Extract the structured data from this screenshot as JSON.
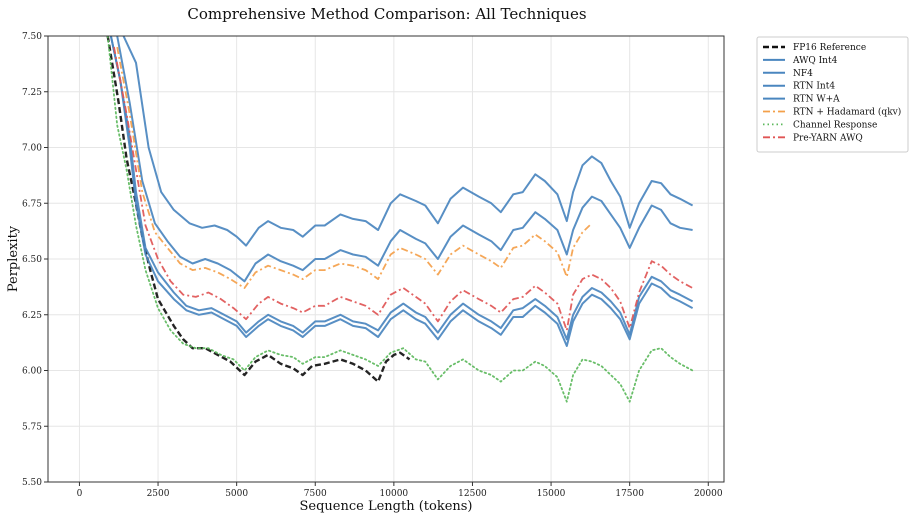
{
  "chart_data": {
    "type": "line",
    "title": "Comprehensive Method Comparison: All Techniques",
    "xlabel": "Sequence Length (tokens)",
    "ylabel": "Perplexity",
    "xlim": [
      -1000,
      20500
    ],
    "ylim": [
      5.5,
      7.5
    ],
    "x_ticks": [
      0,
      2500,
      5000,
      7500,
      10000,
      12500,
      15000,
      17500,
      20000
    ],
    "y_ticks": [
      5.5,
      5.75,
      6.0,
      6.25,
      6.5,
      6.75,
      7.0,
      7.25,
      7.5
    ],
    "x_tick_labels": [
      "0",
      "2500",
      "5000",
      "7500",
      "10000",
      "12500",
      "15000",
      "17500",
      "20000"
    ],
    "y_tick_labels": [
      "5.50",
      "5.75",
      "6.00",
      "6.25",
      "6.50",
      "6.75",
      "7.00",
      "7.25",
      "7.50"
    ],
    "grid": true,
    "legend_position": "outside-top-right",
    "series": [
      {
        "name": "FP16 Reference",
        "color": "#111111",
        "style": "dashed",
        "x": [
          900,
          1250,
          1500,
          1750,
          2000,
          2250,
          2500,
          3000,
          3300,
          3600,
          4000,
          4400,
          4800,
          5250,
          5600,
          6000,
          6400,
          6800,
          7100,
          7400,
          7800,
          8300,
          8700,
          9100,
          9500,
          9750,
          10000,
          10200,
          10500
        ],
        "y": [
          7.5,
          7.2,
          6.95,
          6.78,
          6.6,
          6.45,
          6.32,
          6.2,
          6.14,
          6.1,
          6.1,
          6.07,
          6.04,
          5.98,
          6.04,
          6.07,
          6.03,
          6.01,
          5.98,
          6.02,
          6.03,
          6.05,
          6.03,
          6.0,
          5.95,
          6.04,
          6.07,
          6.08,
          6.05
        ]
      },
      {
        "name": "AWQ Int4",
        "color": "#4a86bf",
        "style": "solid",
        "x": [
          1000,
          1300,
          1600,
          1800,
          2100,
          2500,
          3000,
          3400,
          3800,
          4200,
          4600,
          5000,
          5300,
          5700,
          6000,
          6400,
          6800,
          7100,
          7500,
          7800,
          8300,
          8700,
          9100,
          9500,
          9900,
          10300,
          10700,
          11000,
          11400,
          11800,
          12200,
          12700,
          13100,
          13400,
          13800,
          14100,
          14500,
          14800,
          15200,
          15500,
          15700,
          16000,
          16300,
          16600,
          16900,
          17200,
          17500,
          17800,
          18200,
          18500,
          18800,
          19100,
          19500
        ],
        "y": [
          7.5,
          7.3,
          7.0,
          6.75,
          6.52,
          6.4,
          6.32,
          6.27,
          6.25,
          6.26,
          6.23,
          6.2,
          6.15,
          6.2,
          6.23,
          6.2,
          6.18,
          6.15,
          6.2,
          6.2,
          6.23,
          6.2,
          6.19,
          6.15,
          6.23,
          6.27,
          6.23,
          6.21,
          6.14,
          6.22,
          6.27,
          6.22,
          6.19,
          6.16,
          6.24,
          6.24,
          6.29,
          6.26,
          6.21,
          6.11,
          6.22,
          6.3,
          6.34,
          6.32,
          6.28,
          6.23,
          6.14,
          6.3,
          6.39,
          6.37,
          6.33,
          6.31,
          6.28
        ]
      },
      {
        "name": "NF4",
        "color": "#4a86bf",
        "style": "solid",
        "x": [
          1000,
          1300,
          1600,
          1800,
          2100,
          2500,
          3000,
          3400,
          3800,
          4200,
          4600,
          5000,
          5300,
          5700,
          6000,
          6400,
          6800,
          7100,
          7500,
          7800,
          8300,
          8700,
          9100,
          9500,
          9900,
          10300,
          10700,
          11000,
          11400,
          11800,
          12200,
          12700,
          13100,
          13400,
          13800,
          14100,
          14500,
          14800,
          15200,
          15500,
          15700,
          16000,
          16300,
          16600,
          16900,
          17200,
          17500,
          17800,
          18200,
          18500,
          18800,
          19100,
          19500
        ],
        "y": [
          7.5,
          7.3,
          7.05,
          6.8,
          6.55,
          6.44,
          6.35,
          6.29,
          6.27,
          6.28,
          6.25,
          6.22,
          6.17,
          6.22,
          6.25,
          6.22,
          6.2,
          6.17,
          6.22,
          6.22,
          6.25,
          6.22,
          6.21,
          6.18,
          6.26,
          6.3,
          6.26,
          6.24,
          6.17,
          6.25,
          6.3,
          6.25,
          6.22,
          6.19,
          6.27,
          6.28,
          6.32,
          6.29,
          6.24,
          6.14,
          6.25,
          6.33,
          6.37,
          6.35,
          6.31,
          6.26,
          6.16,
          6.33,
          6.42,
          6.4,
          6.36,
          6.34,
          6.31
        ]
      },
      {
        "name": "RTN Int4",
        "color": "#4a86bf",
        "style": "solid",
        "x": [
          1400,
          1800,
          2200,
          2600,
          3000,
          3500,
          3900,
          4300,
          4700,
          5000,
          5300,
          5700,
          6000,
          6400,
          6800,
          7100,
          7500,
          7800,
          8300,
          8700,
          9100,
          9500,
          9900,
          10200,
          10700,
          11000,
          11400,
          11800,
          12200,
          12700,
          13100,
          13400,
          13800,
          14100,
          14500,
          14800,
          15200,
          15500,
          15700,
          16000,
          16300,
          16600,
          16900,
          17200,
          17500,
          17800,
          18200,
          18500,
          18800,
          19100,
          19500
        ],
        "y": [
          7.5,
          7.38,
          7.0,
          6.8,
          6.72,
          6.66,
          6.64,
          6.65,
          6.63,
          6.6,
          6.56,
          6.64,
          6.67,
          6.64,
          6.63,
          6.6,
          6.65,
          6.65,
          6.7,
          6.68,
          6.67,
          6.63,
          6.75,
          6.79,
          6.76,
          6.74,
          6.66,
          6.77,
          6.82,
          6.78,
          6.75,
          6.71,
          6.79,
          6.8,
          6.88,
          6.85,
          6.79,
          6.67,
          6.8,
          6.92,
          6.96,
          6.93,
          6.85,
          6.78,
          6.64,
          6.75,
          6.85,
          6.84,
          6.79,
          6.77,
          6.74
        ]
      },
      {
        "name": "RTN W+A",
        "color": "#4a86bf",
        "style": "solid",
        "x": [
          1200,
          1600,
          2000,
          2400,
          2800,
          3200,
          3600,
          4000,
          4400,
          4800,
          5250,
          5600,
          6000,
          6400,
          6800,
          7100,
          7500,
          7800,
          8300,
          8700,
          9100,
          9500,
          9900,
          10200,
          10700,
          11000,
          11400,
          11800,
          12200,
          12700,
          13100,
          13400,
          13800,
          14100,
          14500,
          14800,
          15200,
          15500,
          15700,
          16000,
          16300,
          16600,
          16900,
          17200,
          17500,
          17800,
          18200,
          18500,
          18800,
          19100,
          19500
        ],
        "y": [
          7.5,
          7.2,
          6.85,
          6.66,
          6.58,
          6.51,
          6.48,
          6.5,
          6.48,
          6.45,
          6.4,
          6.48,
          6.52,
          6.49,
          6.47,
          6.45,
          6.5,
          6.5,
          6.54,
          6.52,
          6.51,
          6.47,
          6.58,
          6.63,
          6.59,
          6.57,
          6.5,
          6.6,
          6.65,
          6.61,
          6.58,
          6.54,
          6.63,
          6.64,
          6.71,
          6.68,
          6.63,
          6.52,
          6.63,
          6.73,
          6.78,
          6.76,
          6.7,
          6.64,
          6.55,
          6.64,
          6.74,
          6.72,
          6.66,
          6.64,
          6.63
        ]
      },
      {
        "name": "RTN + Hadamard (qkv)",
        "color": "#f4a04a",
        "style": "dashdot",
        "x": [
          1200,
          1600,
          2000,
          2400,
          2800,
          3200,
          3600,
          4000,
          4400,
          4800,
          5250,
          5600,
          6000,
          6400,
          6800,
          7100,
          7500,
          7800,
          8300,
          8700,
          9100,
          9500,
          9900,
          10200,
          10700,
          11000,
          11400,
          11800,
          12200,
          12700,
          13100,
          13400,
          13800,
          14100,
          14500,
          14800,
          15200,
          15500,
          15700,
          16000,
          16300
        ],
        "y": [
          7.45,
          7.15,
          6.8,
          6.62,
          6.55,
          6.48,
          6.45,
          6.46,
          6.44,
          6.41,
          6.37,
          6.44,
          6.47,
          6.45,
          6.43,
          6.41,
          6.45,
          6.45,
          6.48,
          6.47,
          6.45,
          6.41,
          6.52,
          6.55,
          6.52,
          6.5,
          6.43,
          6.52,
          6.56,
          6.52,
          6.49,
          6.46,
          6.55,
          6.56,
          6.61,
          6.58,
          6.53,
          6.42,
          6.55,
          6.62,
          6.66
        ]
      },
      {
        "name": "Channel Response",
        "color": "#5cb85c",
        "style": "dotted",
        "x": [
          900,
          1200,
          1500,
          1800,
          2100,
          2500,
          2900,
          3300,
          3700,
          4100,
          4500,
          4900,
          5250,
          5600,
          6000,
          6400,
          6800,
          7100,
          7500,
          7800,
          8300,
          8700,
          9100,
          9500,
          9900,
          10300,
          10700,
          11000,
          11400,
          11800,
          12200,
          12700,
          13100,
          13400,
          13800,
          14100,
          14500,
          14800,
          15200,
          15500,
          15700,
          16000,
          16300,
          16600,
          16900,
          17200,
          17500,
          17800,
          18200,
          18500,
          18800,
          19100,
          19500
        ],
        "y": [
          7.5,
          7.1,
          6.9,
          6.65,
          6.45,
          6.28,
          6.18,
          6.12,
          6.1,
          6.1,
          6.07,
          6.05,
          6.0,
          6.06,
          6.09,
          6.07,
          6.06,
          6.03,
          6.06,
          6.06,
          6.09,
          6.07,
          6.05,
          6.02,
          6.08,
          6.1,
          6.05,
          6.04,
          5.96,
          6.02,
          6.05,
          6.0,
          5.98,
          5.95,
          6.0,
          6.0,
          6.04,
          6.02,
          5.97,
          5.86,
          5.98,
          6.05,
          6.04,
          6.02,
          5.98,
          5.94,
          5.86,
          6.0,
          6.09,
          6.1,
          6.06,
          6.03,
          6.0
        ]
      },
      {
        "name": "Pre-YARN AWQ",
        "color": "#e05555",
        "style": "dashdot",
        "x": [
          1100,
          1500,
          1800,
          2100,
          2500,
          2900,
          3300,
          3700,
          4100,
          4500,
          4900,
          5300,
          5700,
          6000,
          6400,
          6800,
          7100,
          7500,
          7800,
          8300,
          8700,
          9100,
          9500,
          9900,
          10300,
          10700,
          11000,
          11400,
          11800,
          12200,
          12700,
          13100,
          13400,
          13800,
          14100,
          14500,
          14800,
          15200,
          15500,
          15700,
          16000,
          16300,
          16600,
          16900,
          17200,
          17500,
          17800,
          18200,
          18500,
          18800,
          19100,
          19500
        ],
        "y": [
          7.45,
          7.15,
          6.9,
          6.65,
          6.5,
          6.4,
          6.34,
          6.33,
          6.35,
          6.32,
          6.28,
          6.23,
          6.3,
          6.33,
          6.3,
          6.28,
          6.26,
          6.29,
          6.29,
          6.33,
          6.31,
          6.29,
          6.25,
          6.34,
          6.37,
          6.33,
          6.3,
          6.22,
          6.31,
          6.36,
          6.32,
          6.29,
          6.26,
          6.32,
          6.33,
          6.38,
          6.35,
          6.3,
          6.18,
          6.34,
          6.41,
          6.43,
          6.41,
          6.37,
          6.31,
          6.19,
          6.35,
          6.49,
          6.47,
          6.43,
          6.4,
          6.37
        ]
      }
    ]
  }
}
